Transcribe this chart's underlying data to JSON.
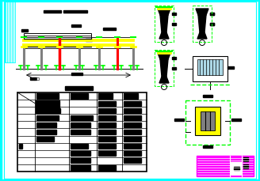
{
  "bg_color": "#ffffff",
  "cyan": "#00ffff",
  "yellow": "#ffff00",
  "lime": "#00ff00",
  "red": "#ff0000",
  "magenta": "#ff00ff",
  "black": "#000000",
  "gray": "#808080",
  "lightblue": "#add8e6",
  "fig_width": 3.28,
  "fig_height": 2.3,
  "dpi": 100
}
